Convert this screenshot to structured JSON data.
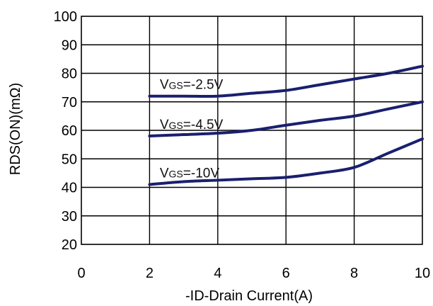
{
  "chart_data": {
    "type": "line",
    "xlabel": "-ID-Drain Current(A)",
    "ylabel": "RDS(ON)(mΩ)",
    "xlim": [
      0,
      10
    ],
    "ylim": [
      20,
      100
    ],
    "x_ticks": [
      0,
      2,
      4,
      6,
      8,
      10
    ],
    "y_ticks": [
      20,
      30,
      40,
      50,
      60,
      70,
      80,
      90,
      100
    ],
    "grid": true,
    "line_color": "#1a1f6e",
    "series": [
      {
        "name": "VGS=-2.5V",
        "x": [
          2,
          3,
          4,
          5,
          6,
          7,
          8,
          9,
          10
        ],
        "y": [
          72,
          72,
          72,
          73,
          74,
          76,
          78,
          80,
          82.5
        ]
      },
      {
        "name": "VGS=-4.5V",
        "x": [
          2,
          3,
          4,
          5,
          6,
          7,
          8,
          9,
          10
        ],
        "y": [
          58,
          58.5,
          59,
          60,
          61.8,
          63.5,
          65,
          67.5,
          70
        ]
      },
      {
        "name": "VGS=-10V",
        "x": [
          2,
          3,
          4,
          5,
          6,
          7,
          8,
          9,
          10
        ],
        "y": [
          41,
          42,
          42.5,
          43,
          43.5,
          45,
          47,
          52,
          57
        ]
      }
    ],
    "annotations": [
      {
        "main": "V",
        "sub": "GS",
        "rest": "=-2.5V"
      },
      {
        "main": "V",
        "sub": "GS",
        "rest": "=-4.5V"
      },
      {
        "main": "V",
        "sub": "GS",
        "rest": "=-10V"
      }
    ]
  }
}
